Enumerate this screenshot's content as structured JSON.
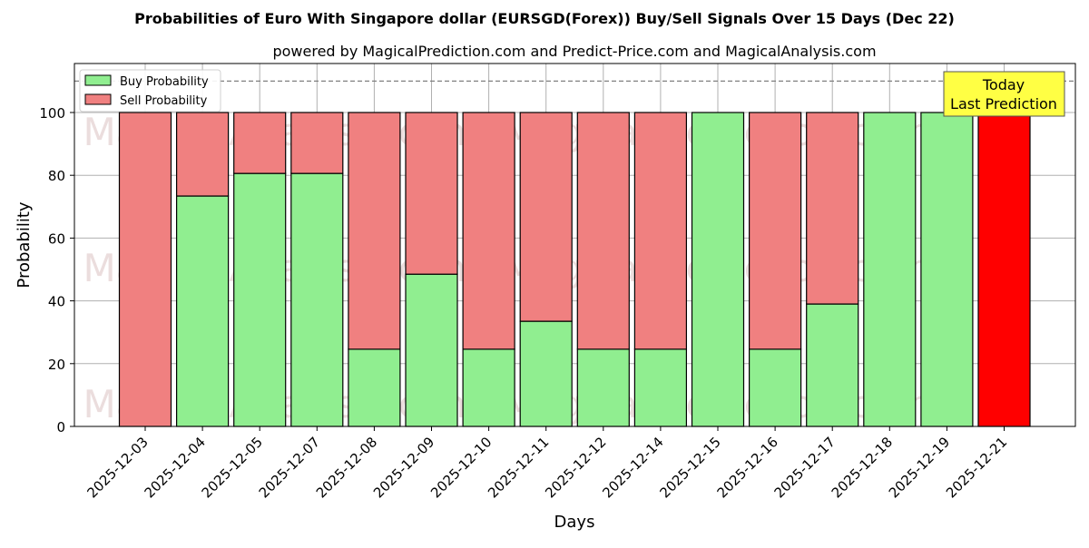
{
  "title": "Probabilities of Euro With Singapore dollar (EURSGD(Forex)) Buy/Sell Signals Over 15 Days (Dec 22)",
  "subtitle": "powered by MagicalPrediction.com and Predict-Price.com and MagicalAnalysis.com",
  "watermarks": [
    "MagicalAnalysis.com",
    "MagicalPrediction.com"
  ],
  "annotation": {
    "line1": "Today",
    "line2": "Last Prediction"
  },
  "colors": {
    "buy": "#90ee90",
    "sell": "#f08080",
    "today": "#ff0000",
    "annotation_bg": "#ffff44"
  },
  "chart_data": {
    "type": "bar",
    "stacked": true,
    "title": "Probabilities of Euro With Singapore dollar (EURSGD(Forex)) Buy/Sell Signals Over 15 Days (Dec 22)",
    "subtitle": "powered by MagicalPrediction.com and Predict-Price.com and MagicalAnalysis.com",
    "xlabel": "Days",
    "ylabel": "Probability",
    "ylim": [
      0,
      115
    ],
    "yticks": [
      0,
      20,
      40,
      60,
      80,
      100
    ],
    "reference_line": 110,
    "grid": true,
    "legend_position": "upper left",
    "categories": [
      "2025-12-03",
      "2025-12-04",
      "2025-12-05",
      "2025-12-07",
      "2025-12-08",
      "2025-12-09",
      "2025-12-10",
      "2025-12-11",
      "2025-12-12",
      "2025-12-14",
      "2025-12-15",
      "2025-12-16",
      "2025-12-17",
      "2025-12-18",
      "2025-12-19",
      "2025-12-21"
    ],
    "series": [
      {
        "name": "Buy Probability",
        "values": [
          0,
          73.4,
          80.6,
          80.6,
          24.6,
          48.5,
          24.6,
          33.5,
          24.6,
          24.6,
          100,
          24.6,
          39,
          100,
          100,
          0
        ]
      },
      {
        "name": "Sell Probability",
        "values": [
          100,
          26.6,
          19.4,
          19.4,
          75.4,
          51.5,
          75.4,
          66.5,
          75.4,
          75.4,
          0,
          75.4,
          61,
          0,
          0,
          100
        ]
      }
    ]
  }
}
